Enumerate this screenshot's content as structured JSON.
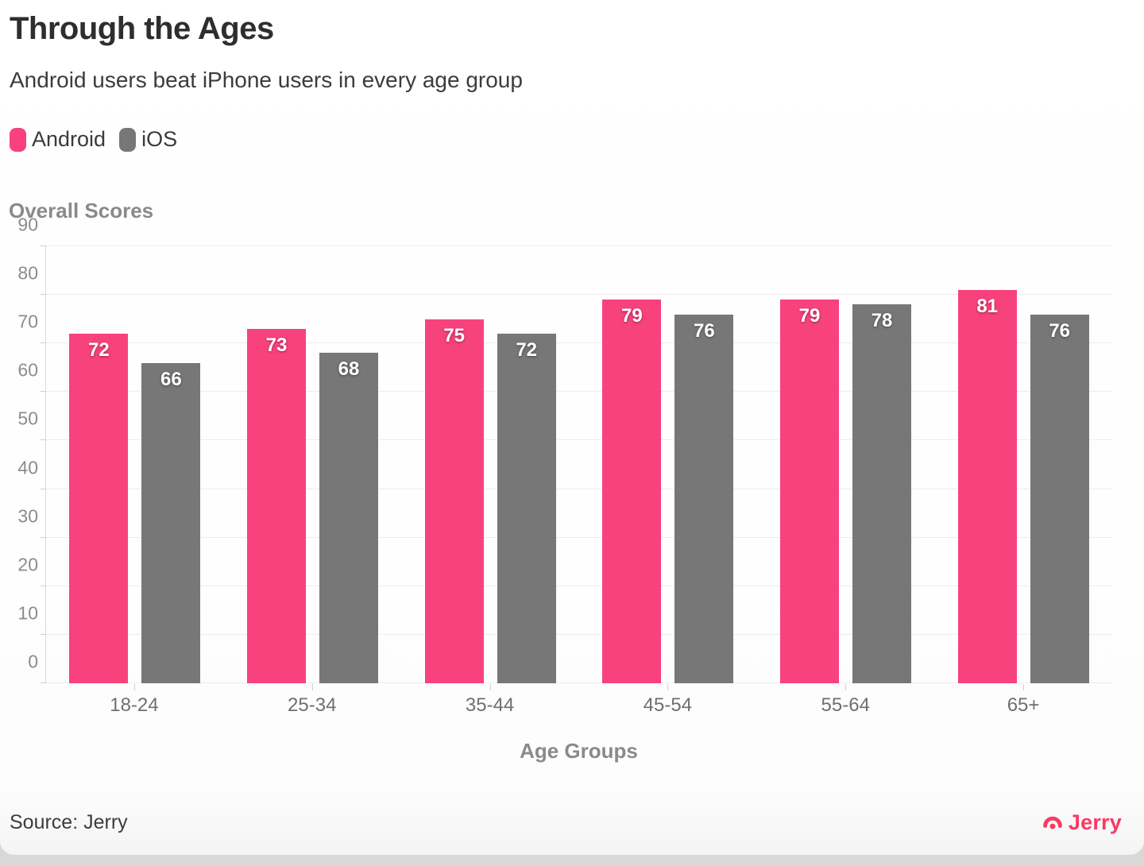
{
  "header": {
    "title": "Through the Ages",
    "subtitle": "Android users beat iPhone users in every age group"
  },
  "legend": {
    "items": [
      {
        "label": "Android",
        "color": "#f8427d"
      },
      {
        "label": "iOS",
        "color": "#777777"
      }
    ]
  },
  "footer": {
    "source_label": "Source: Jerry",
    "logo_text": "Jerry"
  },
  "colors": {
    "android": "#f8427d",
    "ios": "#777777",
    "brand_pink": "#f93a62",
    "grid": "#ececec",
    "axis": "#dedede"
  },
  "chart_data": {
    "type": "bar",
    "title": "Through the Ages",
    "subtitle": "Android users beat iPhone users in every age group",
    "categories": [
      "18-24",
      "25-34",
      "35-44",
      "45-54",
      "55-64",
      "65+"
    ],
    "series": [
      {
        "name": "Android",
        "color": "#f8427d",
        "values": [
          72,
          73,
          75,
          79,
          79,
          81
        ]
      },
      {
        "name": "iOS",
        "color": "#777777",
        "values": [
          66,
          68,
          72,
          76,
          78,
          76
        ]
      }
    ],
    "xlabel": "Age Groups",
    "ylabel": "Overall Scores",
    "ylim": [
      0,
      90
    ],
    "ytick_step": 10,
    "grid": "horizontal",
    "legend_position": "top-left",
    "value_labels": true,
    "source": "Jerry"
  }
}
